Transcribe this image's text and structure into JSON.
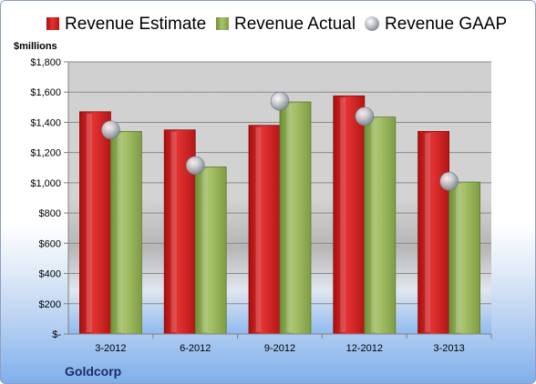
{
  "chart_data": {
    "type": "bar",
    "title": "",
    "xlabel": "",
    "ylabel": "$millions",
    "footer": "Goldcorp",
    "categories": [
      "3-2012",
      "6-2012",
      "9-2012",
      "12-2012",
      "3-2013"
    ],
    "series": [
      {
        "name": "Revenue Estimate",
        "kind": "bar",
        "color": "#d42020",
        "values": [
          1470,
          1350,
          1380,
          1575,
          1340
        ]
      },
      {
        "name": "Revenue Actual",
        "kind": "bar",
        "color": "#8fb04f",
        "values": [
          1340,
          1105,
          1535,
          1435,
          1005
        ]
      },
      {
        "name": "Revenue GAAP",
        "kind": "marker",
        "color": "#b8bcc4",
        "values": [
          1350,
          1115,
          1540,
          1440,
          1010
        ]
      }
    ],
    "yticks": [
      "$-",
      "$200",
      "$400",
      "$600",
      "$800",
      "$1,000",
      "$1,200",
      "$1,400",
      "$1,600",
      "$1,800"
    ],
    "ylim": [
      0,
      1800
    ],
    "grid": true,
    "legend": "top"
  }
}
